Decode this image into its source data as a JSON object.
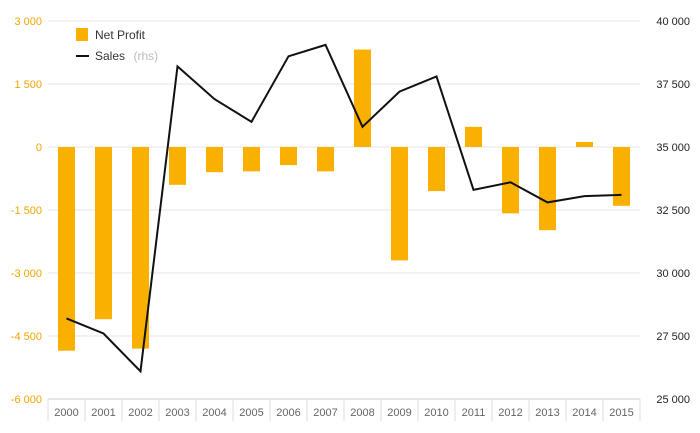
{
  "chart_data": {
    "type": "bar+line",
    "categories": [
      "2000",
      "2001",
      "2002",
      "2003",
      "2004",
      "2005",
      "2006",
      "2007",
      "2008",
      "2009",
      "2010",
      "2011",
      "2012",
      "2013",
      "2014",
      "2015"
    ],
    "series": [
      {
        "name": "Net Profit",
        "type": "bar",
        "axis": "left",
        "color": "#f9b000",
        "values": [
          -4850,
          -4100,
          -4800,
          -900,
          -600,
          -580,
          -430,
          -580,
          2320,
          -2700,
          -1050,
          480,
          -1580,
          -1980,
          120,
          -1400
        ]
      },
      {
        "name": "Sales",
        "suffix": "(rhs)",
        "type": "line",
        "axis": "right",
        "color": "#111111",
        "values": [
          28200,
          27600,
          26100,
          38200,
          36900,
          36000,
          38600,
          39050,
          35800,
          37200,
          37800,
          33300,
          33600,
          32800,
          33050,
          33100
        ]
      }
    ],
    "yaxis_left": {
      "min": -6000,
      "max": 3000,
      "ticks": [
        3000,
        1500,
        0,
        -1500,
        -3000,
        -4500,
        -6000
      ],
      "tick_labels": [
        "3 000",
        "1 500",
        "0",
        "-1 500",
        "-3 000",
        "-4 500",
        "-6 000"
      ]
    },
    "yaxis_right": {
      "min": 25000,
      "max": 40000,
      "ticks": [
        40000,
        37500,
        35000,
        32500,
        30000,
        27500,
        25000
      ],
      "tick_labels": [
        "40 000",
        "37 500",
        "35 000",
        "32 500",
        "30 000",
        "27 500",
        "25 000"
      ]
    },
    "grid": true,
    "legend": "top-left"
  }
}
